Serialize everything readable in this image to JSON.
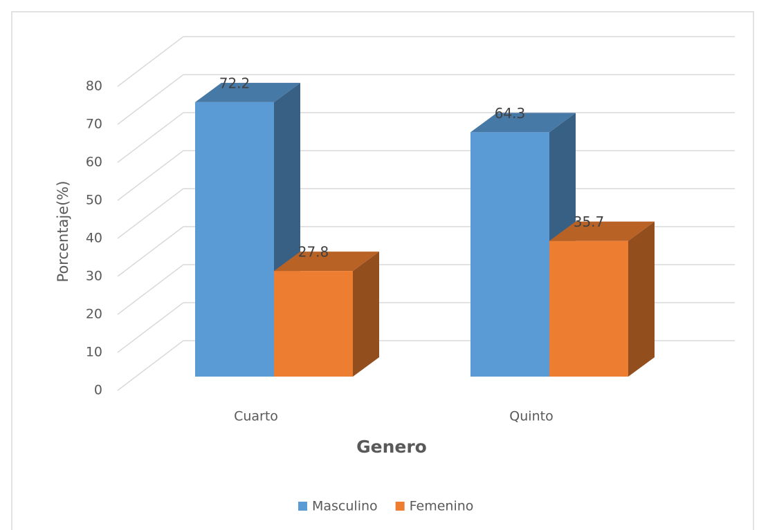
{
  "chart_data": {
    "type": "bar3d",
    "categories": [
      "Cuarto",
      "Quinto"
    ],
    "series": [
      {
        "name": "Masculino",
        "color": "#5b9bd5",
        "values": [
          72.2,
          64.3
        ]
      },
      {
        "name": "Femenino",
        "color": "#ed7d31",
        "values": [
          27.8,
          35.7
        ]
      }
    ],
    "xlabel": "Genero",
    "ylabel": "Porcentaje(%)",
    "ylim": [
      0,
      80
    ],
    "yticks": [
      0,
      10,
      20,
      30,
      40,
      50,
      60,
      70,
      80
    ],
    "grid": true,
    "legend": "bottom",
    "data_labels": true
  }
}
